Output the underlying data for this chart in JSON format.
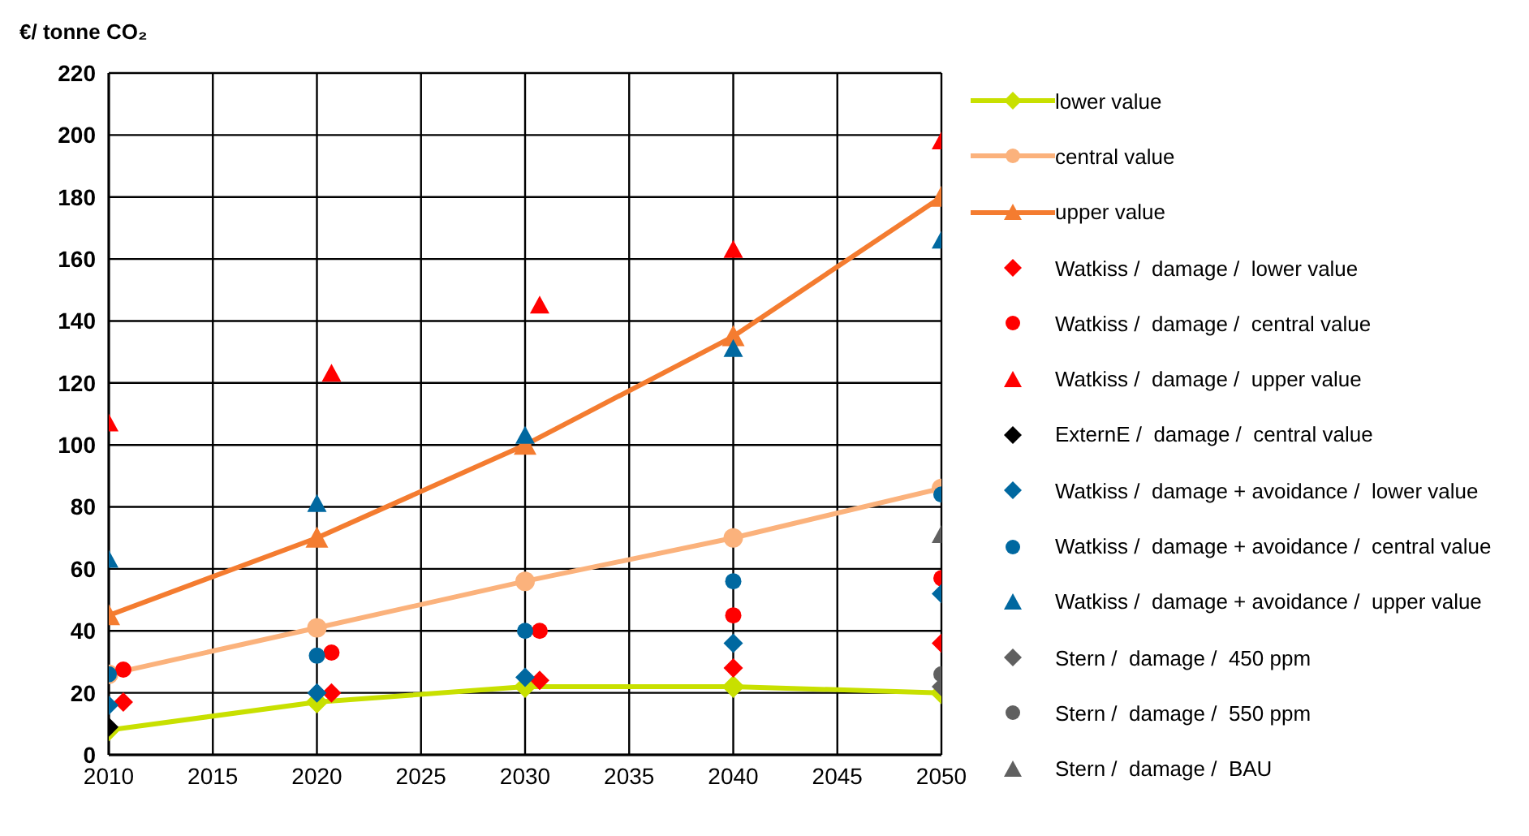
{
  "chart_data": {
    "type": "line",
    "ylabel": "€/ tonne CO₂",
    "xlim": [
      2010,
      2050
    ],
    "xticks": [
      2010,
      2015,
      2020,
      2025,
      2030,
      2035,
      2040,
      2045,
      2050
    ],
    "ylim": [
      0,
      220
    ],
    "yticks": [
      0,
      20,
      40,
      60,
      80,
      100,
      120,
      140,
      160,
      180,
      200,
      220
    ],
    "grid": true,
    "legend": "right",
    "line_style": "solid",
    "series": [
      {
        "name": "lower value",
        "marker": "diamond",
        "color": "#c8e000",
        "x": [
          2010,
          2020,
          2030,
          2040,
          2050
        ],
        "values": [
          8,
          17,
          22,
          22,
          20
        ]
      },
      {
        "name": "central value",
        "marker": "circle",
        "color": "#fbb27c",
        "x": [
          2010,
          2020,
          2030,
          2040,
          2050
        ],
        "values": [
          26,
          41,
          56,
          70,
          86
        ]
      },
      {
        "name": "upper value",
        "marker": "triangle",
        "color": "#f47c30",
        "x": [
          2010,
          2020,
          2030,
          2040,
          2050
        ],
        "values": [
          45,
          70,
          100,
          135,
          180
        ]
      },
      {
        "name": "Watkiss /  damage /  lower value",
        "type": "scatter",
        "marker": "diamond",
        "color": "#ff0000",
        "x": [
          2010.7,
          2020.7,
          2030.7,
          2040,
          2050
        ],
        "values": [
          17,
          20,
          24,
          28,
          36
        ]
      },
      {
        "name": "Watkiss /  damage /  central value",
        "type": "scatter",
        "marker": "circle",
        "color": "#ff0000",
        "x": [
          2010.7,
          2020.7,
          2030.7,
          2040,
          2050
        ],
        "values": [
          27.5,
          33,
          40,
          45,
          57
        ]
      },
      {
        "name": "Watkiss /  damage /  upper value",
        "type": "scatter",
        "marker": "triangle",
        "color": "#ff0000",
        "x": [
          2010,
          2020.7,
          2030.7,
          2040,
          2050
        ],
        "values": [
          107,
          123,
          145,
          163,
          198
        ]
      },
      {
        "name": "ExternE /  damage /  central value",
        "type": "scatter",
        "marker": "diamond",
        "color": "#000000",
        "x": [
          2010
        ],
        "values": [
          9
        ]
      },
      {
        "name": "Watkiss /  damage + avoidance /  lower value",
        "type": "scatter",
        "marker": "diamond",
        "color": "#0068a0",
        "x": [
          2010,
          2020,
          2030,
          2040,
          2050
        ],
        "values": [
          16,
          20,
          25,
          36,
          52
        ]
      },
      {
        "name": "Watkiss /  damage + avoidance /  central value",
        "type": "scatter",
        "marker": "circle",
        "color": "#0068a0",
        "x": [
          2010,
          2020,
          2030,
          2040,
          2050
        ],
        "values": [
          26,
          32,
          40,
          56,
          84
        ]
      },
      {
        "name": "Watkiss /  damage + avoidance /  upper value",
        "type": "scatter",
        "marker": "triangle",
        "color": "#0068a0",
        "x": [
          2010,
          2020,
          2030,
          2040,
          2050
        ],
        "values": [
          63,
          81,
          103,
          131,
          166
        ]
      },
      {
        "name": "Stern /  damage /  450 ppm",
        "type": "scatter",
        "marker": "diamond",
        "color": "#606060",
        "x": [
          2050
        ],
        "values": [
          22
        ]
      },
      {
        "name": "Stern /  damage /  550 ppm",
        "type": "scatter",
        "marker": "circle",
        "color": "#606060",
        "x": [
          2050
        ],
        "values": [
          26
        ]
      },
      {
        "name": "Stern /  damage /  BAU",
        "type": "scatter",
        "marker": "triangle",
        "color": "#606060",
        "x": [
          2050
        ],
        "values": [
          71
        ]
      }
    ]
  }
}
